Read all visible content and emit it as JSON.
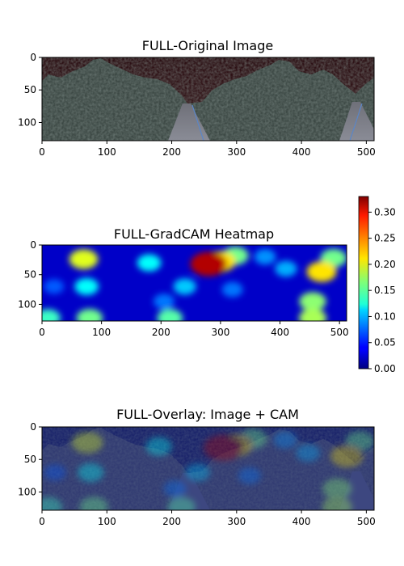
{
  "chart_data": [
    {
      "type": "heatmap",
      "title": "FULL-Original Image",
      "xlim": [
        0,
        512
      ],
      "ylim": [
        128,
        0
      ],
      "x_ticks": [
        "0",
        "100",
        "200",
        "300",
        "400",
        "500"
      ],
      "y_ticks": [
        "0",
        "50",
        "100"
      ],
      "content": "photograph of a road flanked by dense trees under a dark sky"
    },
    {
      "type": "heatmap",
      "title": "FULL-GradCAM Heatmap",
      "xlim": [
        0,
        512
      ],
      "ylim": [
        128,
        0
      ],
      "x_ticks": [
        "0",
        "100",
        "200",
        "300",
        "400",
        "500"
      ],
      "y_ticks": [
        "0",
        "50",
        "100"
      ],
      "colormap": "jet",
      "colorbar": {
        "range": [
          0.0,
          0.33
        ],
        "ticks": [
          "0.00",
          "0.05",
          "0.10",
          "0.15",
          "0.20",
          "0.25",
          "0.30"
        ]
      },
      "hotspots": [
        {
          "x": 280,
          "y": 32,
          "value": 0.33
        },
        {
          "x": 300,
          "y": 28,
          "value": 0.22
        },
        {
          "x": 325,
          "y": 18,
          "value": 0.16
        },
        {
          "x": 70,
          "y": 24,
          "value": 0.2
        },
        {
          "x": 470,
          "y": 45,
          "value": 0.22
        },
        {
          "x": 490,
          "y": 22,
          "value": 0.16
        },
        {
          "x": 455,
          "y": 95,
          "value": 0.17
        },
        {
          "x": 455,
          "y": 123,
          "value": 0.18
        },
        {
          "x": 75,
          "y": 70,
          "value": 0.12
        },
        {
          "x": 80,
          "y": 123,
          "value": 0.16
        },
        {
          "x": 10,
          "y": 123,
          "value": 0.14
        },
        {
          "x": 215,
          "y": 123,
          "value": 0.15
        },
        {
          "x": 180,
          "y": 30,
          "value": 0.12
        },
        {
          "x": 240,
          "y": 70,
          "value": 0.1
        },
        {
          "x": 410,
          "y": 40,
          "value": 0.09
        },
        {
          "x": 375,
          "y": 20,
          "value": 0.08
        },
        {
          "x": 205,
          "y": 95,
          "value": 0.07
        },
        {
          "x": 320,
          "y": 75,
          "value": 0.07
        },
        {
          "x": 20,
          "y": 70,
          "value": 0.06
        }
      ]
    },
    {
      "type": "heatmap",
      "title": "FULL-Overlay: Image + CAM",
      "xlim": [
        0,
        512
      ],
      "ylim": [
        128,
        0
      ],
      "x_ticks": [
        "0",
        "100",
        "200",
        "300",
        "400",
        "500"
      ],
      "y_ticks": [
        "0",
        "50",
        "100"
      ],
      "content": "road photograph blended with the blue-dominated GradCAM heatmap"
    }
  ],
  "colors": {
    "sky": "#2a0e12",
    "trees": "#3c4844",
    "road": "#7a7c85",
    "jet_low": "#00007f",
    "jet_high": "#7f0000",
    "overlay_tint": "#1b2a7a"
  }
}
